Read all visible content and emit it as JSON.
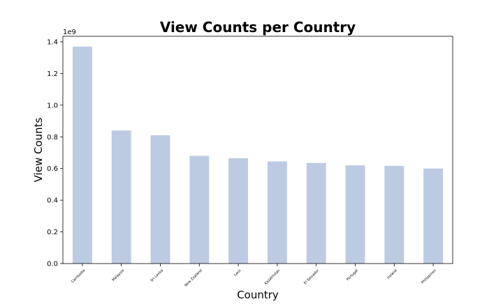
{
  "chart_data": {
    "type": "bar",
    "title": "View Counts per Country",
    "xlabel": "Country",
    "ylabel": "View Counts",
    "y_offset_label": "1e9",
    "categories": [
      "Cambodia",
      "Malaysia",
      "Sri Lanka",
      "New Zealand",
      "Laos",
      "Kazakhstan",
      "El Salvador",
      "Portugal",
      "Ireland",
      "Philippines"
    ],
    "values": [
      1.37,
      0.84,
      0.81,
      0.68,
      0.665,
      0.645,
      0.635,
      0.62,
      0.617,
      0.6
    ],
    "value_scale": 1000000000,
    "ylim": [
      0,
      1.435
    ],
    "yticks": [
      "0.0",
      "0.2",
      "0.4",
      "0.6",
      "0.8",
      "1.0",
      "1.2",
      "1.4"
    ],
    "bar_color": "#bccbe2",
    "grid": false,
    "legend": "none"
  }
}
